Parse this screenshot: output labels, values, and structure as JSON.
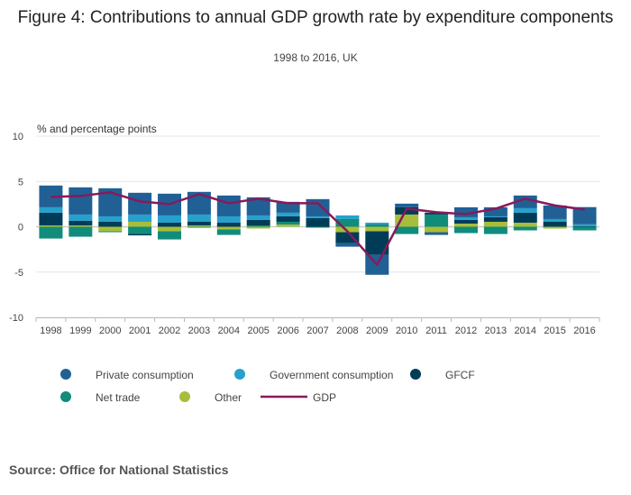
{
  "chart_data": {
    "type": "bar",
    "stacked": true,
    "title": "Figure 4: Contributions to annual GDP growth rate by expenditure components",
    "subtitle": "1998 to 2016, UK",
    "ylabel": "% and percentage points",
    "xlabel": "",
    "ylim": [
      -10,
      10
    ],
    "yticks": [
      10,
      5,
      0,
      -5,
      -10
    ],
    "grid": true,
    "legend_position": "bottom",
    "categories": [
      "1998",
      "1999",
      "2000",
      "2001",
      "2002",
      "2003",
      "2004",
      "2005",
      "2006",
      "2007",
      "2008",
      "2009",
      "2010",
      "2011",
      "2012",
      "2013",
      "2014",
      "2015",
      "2016"
    ],
    "series": [
      {
        "name": "Private consumption",
        "color": "#206095",
        "values": [
          2.4,
          3.0,
          3.1,
          2.4,
          2.4,
          2.5,
          2.3,
          2.0,
          1.2,
          1.9,
          -0.4,
          -2.2,
          0.4,
          -0.3,
          1.1,
          1.0,
          1.4,
          1.5,
          1.9
        ]
      },
      {
        "name": "Government consumption",
        "color": "#27a0cc",
        "values": [
          0.6,
          0.7,
          0.6,
          0.8,
          0.8,
          0.8,
          0.7,
          0.5,
          0.4,
          0.2,
          0.4,
          0.2,
          0.0,
          0.0,
          0.3,
          0.1,
          0.5,
          0.3,
          0.2
        ]
      },
      {
        "name": "GFCF",
        "color": "#003c57",
        "values": [
          1.4,
          0.5,
          0.55,
          -0.15,
          0.45,
          0.4,
          0.45,
          0.6,
          0.6,
          0.95,
          -1.2,
          -2.6,
          0.8,
          0.2,
          0.4,
          0.5,
          1.1,
          0.55,
          0.07
        ]
      },
      {
        "name": "Net trade",
        "color": "#118c7b",
        "values": [
          -1.3,
          -1.1,
          -0.1,
          -0.8,
          -0.9,
          -0.1,
          -0.6,
          0.15,
          0.3,
          -0.1,
          0.85,
          0.25,
          -0.8,
          1.35,
          -0.7,
          -0.8,
          -0.4,
          0.0,
          -0.4
        ]
      },
      {
        "name": "Other",
        "color": "#a8bd3a",
        "values": [
          0.15,
          0.15,
          -0.5,
          0.55,
          -0.5,
          0.15,
          -0.3,
          -0.2,
          0.25,
          0.0,
          -0.6,
          -0.5,
          1.35,
          -0.6,
          0.35,
          0.55,
          0.45,
          -0.2,
          0.0
        ]
      }
    ],
    "line": {
      "name": "GDP",
      "color": "#871a5b",
      "values": [
        3.3,
        3.4,
        3.8,
        2.8,
        2.5,
        3.6,
        2.6,
        3.1,
        2.6,
        2.6,
        -0.5,
        -4.2,
        2.0,
        1.6,
        1.4,
        2.0,
        3.1,
        2.35,
        1.9
      ]
    }
  },
  "source": "Source: Office for National Statistics"
}
